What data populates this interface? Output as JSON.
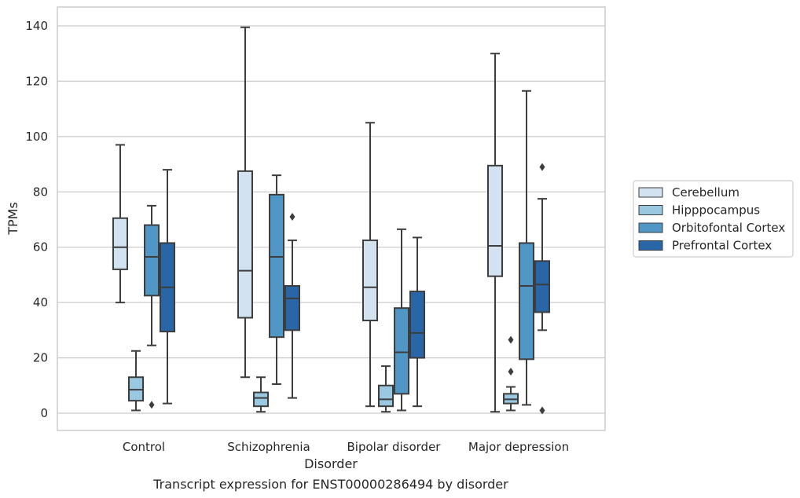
{
  "chart_data": {
    "type": "box",
    "caption": "Transcript expression for ENST00000286494 by disorder",
    "xlabel": "Disorder",
    "ylabel": "TPMs",
    "ylim": [
      -6,
      146
    ],
    "yticks": [
      0,
      20,
      40,
      60,
      80,
      100,
      120,
      140
    ],
    "grid": "horizontal",
    "legend_position": "right",
    "categories": [
      "Control",
      "Schizophrenia",
      "Bipolar disorder",
      "Major depression"
    ],
    "series": [
      {
        "name": "Cerebellum",
        "color": "#d2e2f1",
        "boxes": [
          {
            "whisker_low": 40,
            "q1": 52,
            "median": 60,
            "q3": 70.5,
            "whisker_high": 97,
            "outliers": []
          },
          {
            "whisker_low": 13,
            "q1": 34.5,
            "median": 51.5,
            "q3": 87.5,
            "whisker_high": 139.5,
            "outliers": []
          },
          {
            "whisker_low": 2.5,
            "q1": 33.5,
            "median": 45.5,
            "q3": 62.5,
            "whisker_high": 105,
            "outliers": []
          },
          {
            "whisker_low": 0.5,
            "q1": 49.5,
            "median": 60.5,
            "q3": 89.5,
            "whisker_high": 130,
            "outliers": []
          }
        ]
      },
      {
        "name": "Hipppocampus",
        "color": "#9ac8e0",
        "boxes": [
          {
            "whisker_low": 1,
            "q1": 4.5,
            "median": 8.5,
            "q3": 13,
            "whisker_high": 22.5,
            "outliers": []
          },
          {
            "whisker_low": 0.5,
            "q1": 2.5,
            "median": 5.5,
            "q3": 7.5,
            "whisker_high": 13,
            "outliers": []
          },
          {
            "whisker_low": 0.5,
            "q1": 2.5,
            "median": 5,
            "q3": 10,
            "whisker_high": 17,
            "outliers": []
          },
          {
            "whisker_low": 1,
            "q1": 3.5,
            "median": 5,
            "q3": 7,
            "whisker_high": 9.5,
            "outliers": [
              15,
              26.5
            ]
          }
        ]
      },
      {
        "name": "Orbitofontal Cortex",
        "color": "#5197c6",
        "boxes": [
          {
            "whisker_low": 24.5,
            "q1": 42.5,
            "median": 56.5,
            "q3": 68,
            "whisker_high": 75,
            "outliers": [
              3
            ]
          },
          {
            "whisker_low": 10.5,
            "q1": 27.5,
            "median": 56.5,
            "q3": 79,
            "whisker_high": 86,
            "outliers": []
          },
          {
            "whisker_low": 1,
            "q1": 7,
            "median": 22,
            "q3": 38,
            "whisker_high": 66.5,
            "outliers": []
          },
          {
            "whisker_low": 3,
            "q1": 19.5,
            "median": 46,
            "q3": 61.5,
            "whisker_high": 116.5,
            "outliers": []
          }
        ]
      },
      {
        "name": "Prefrontal Cortex",
        "color": "#2966a7",
        "boxes": [
          {
            "whisker_low": 3.5,
            "q1": 29.5,
            "median": 45.5,
            "q3": 61.5,
            "whisker_high": 88,
            "outliers": []
          },
          {
            "whisker_low": 5.5,
            "q1": 30,
            "median": 41.5,
            "q3": 46,
            "whisker_high": 62.5,
            "outliers": [
              71
            ]
          },
          {
            "whisker_low": 2.5,
            "q1": 20,
            "median": 29,
            "q3": 44,
            "whisker_high": 63.5,
            "outliers": []
          },
          {
            "whisker_low": 30,
            "q1": 36.5,
            "median": 46.5,
            "q3": 55,
            "whisker_high": 77.5,
            "outliers": [
              1,
              89
            ]
          }
        ]
      }
    ]
  }
}
